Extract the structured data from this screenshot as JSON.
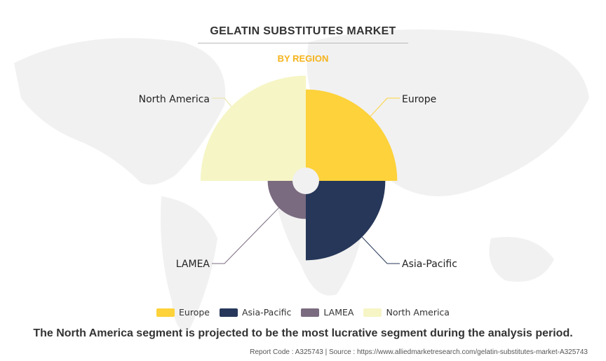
{
  "title": "GELATIN SUBSTITUTES MARKET",
  "subtitle": "BY REGION",
  "chart_data": {
    "type": "polar-area",
    "title": "GELATIN SUBSTITUTES MARKET",
    "subtitle": "BY REGION",
    "categories": [
      "Europe",
      "Asia-Pacific",
      "LAMEA",
      "North America"
    ],
    "values": [
      85,
      72,
      27,
      100
    ],
    "colors": [
      "#fdd23a",
      "#263759",
      "#7a6b80",
      "#f6f5c5"
    ],
    "legend": "bottom",
    "grid": false
  },
  "legend": [
    {
      "label": "Europe",
      "color": "#fdd23a"
    },
    {
      "label": "Asia-Pacific",
      "color": "#263759"
    },
    {
      "label": "LAMEA",
      "color": "#7a6b80"
    },
    {
      "label": "North America",
      "color": "#f6f5c5"
    }
  ],
  "note": "The North America segment is projected to be the most lucrative segment during the analysis period.",
  "footer": "Report Code : A325743  |  Source : https://www.alliedmarketresearch.com/gelatin-substitutes-market-A325743"
}
